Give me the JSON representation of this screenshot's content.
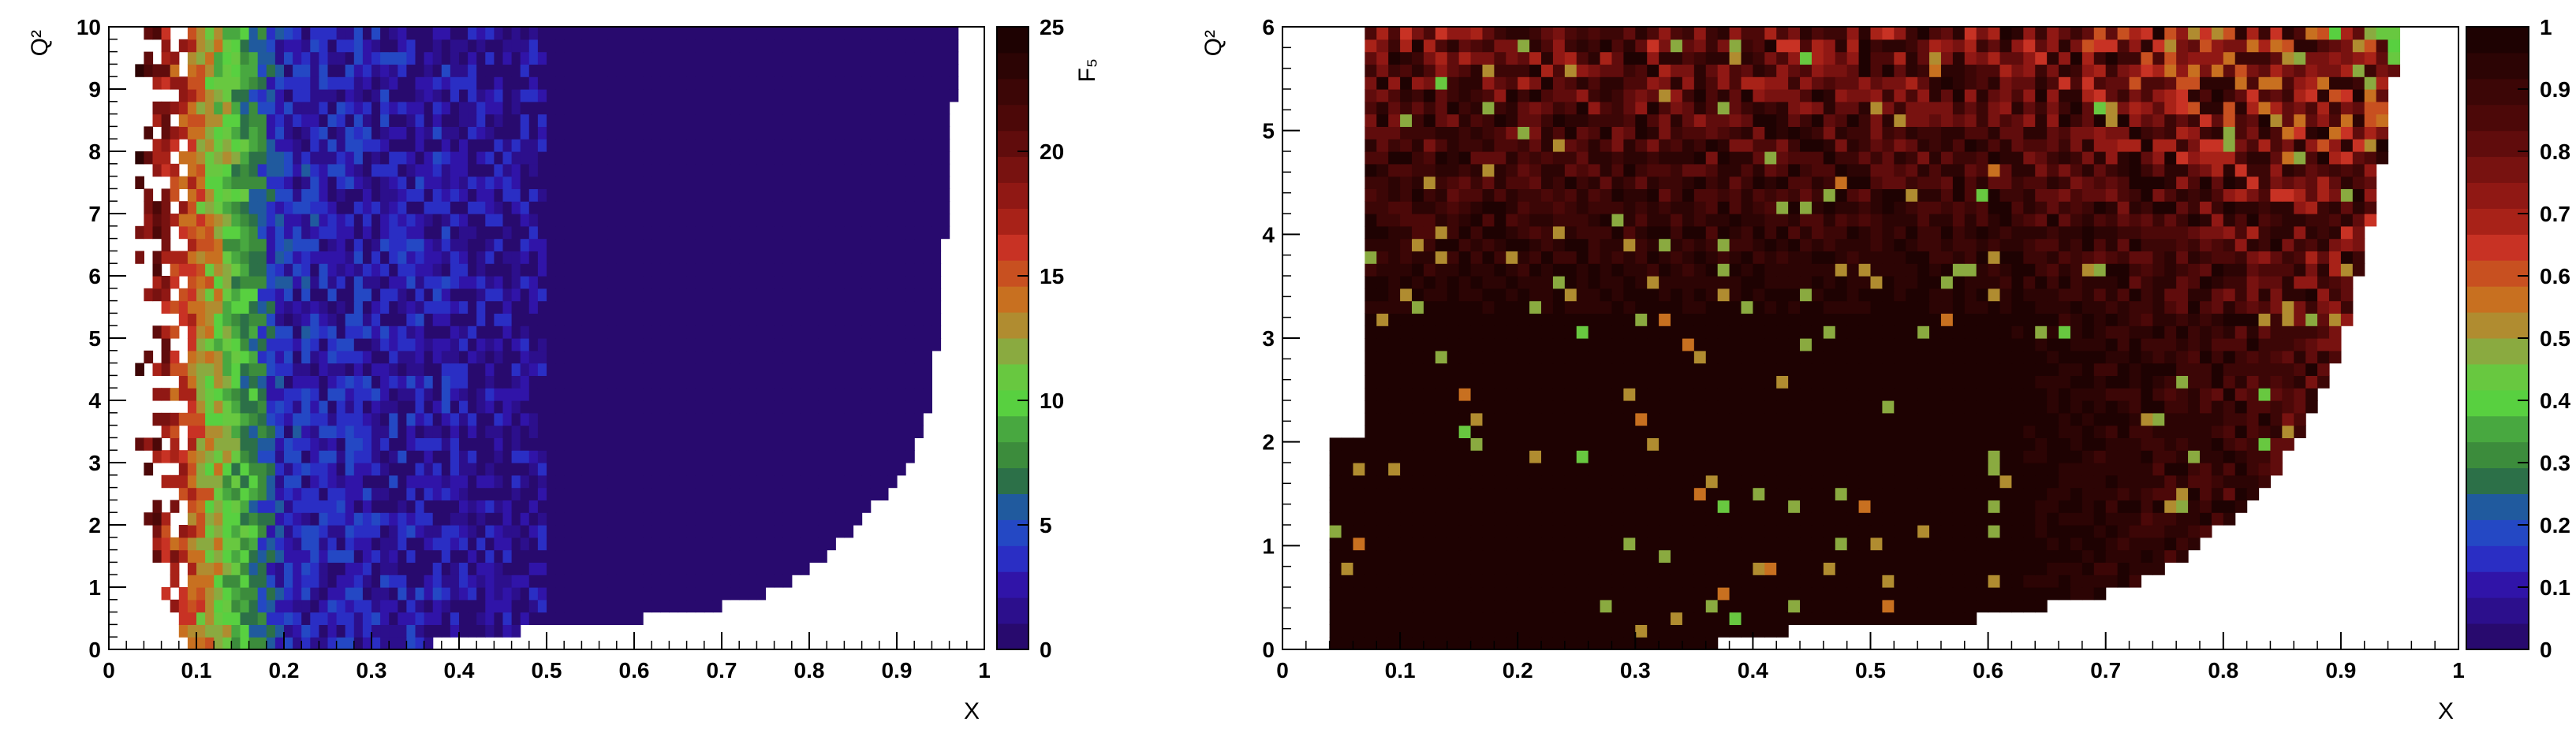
{
  "chart_data": [
    {
      "type": "heatmap",
      "title": "",
      "xlabel": "X",
      "ylabel": "Q²",
      "zlabel": "F₅",
      "xlim": [
        0,
        1
      ],
      "ylim": [
        0,
        10
      ],
      "zlim": [
        0,
        25
      ],
      "x_ticks": [
        "0",
        "0.1",
        "0.2",
        "0.3",
        "0.4",
        "0.5",
        "0.6",
        "0.7",
        "0.8",
        "0.9",
        "1"
      ],
      "y_ticks": [
        "0",
        "1",
        "2",
        "3",
        "4",
        "5",
        "6",
        "7",
        "8",
        "9",
        "10"
      ],
      "z_ticks": [
        "0",
        "5",
        "10",
        "15",
        "20",
        "25"
      ],
      "grid": false,
      "colorbar": "right",
      "bins": {
        "nx": 100,
        "ny": 50
      },
      "description_points": [
        {
          "x": 0.06,
          "y": 1.5,
          "z": 20
        },
        {
          "x": 0.1,
          "y": 4.0,
          "z": 14
        },
        {
          "x": 0.15,
          "y": 6.0,
          "z": 10
        },
        {
          "x": 0.2,
          "y": 5.0,
          "z": 4
        },
        {
          "x": 0.3,
          "y": 5.0,
          "z": 2
        },
        {
          "x": 0.4,
          "y": 5.0,
          "z": 1.5
        },
        {
          "x": 0.7,
          "y": 5.0,
          "z": 0.5
        },
        {
          "x": 0.9,
          "y": 8.0,
          "z": 0.5
        }
      ],
      "x_max_vs_q2": [
        [
          0.37,
          0.25
        ],
        [
          0.56,
          0.35
        ],
        [
          0.62,
          0.55
        ],
        [
          0.72,
          0.75
        ],
        [
          0.78,
          1.1
        ],
        [
          0.82,
          1.5
        ],
        [
          0.86,
          2.1
        ],
        [
          0.91,
          2.8
        ],
        [
          0.94,
          4.0
        ],
        [
          0.95,
          5.5
        ],
        [
          0.96,
          7.5
        ],
        [
          0.97,
          10.0
        ]
      ]
    },
    {
      "type": "heatmap",
      "title": "",
      "xlabel": "X",
      "ylabel": "Q²",
      "zlabel": "",
      "xlim": [
        0,
        1
      ],
      "ylim": [
        0,
        6
      ],
      "zlim": [
        0,
        1
      ],
      "x_ticks": [
        "0",
        "0.1",
        "0.2",
        "0.3",
        "0.4",
        "0.5",
        "0.6",
        "0.7",
        "0.8",
        "0.9",
        "1"
      ],
      "y_ticks": [
        "0",
        "1",
        "2",
        "3",
        "4",
        "5",
        "6"
      ],
      "z_ticks": [
        "0",
        "0.1",
        "0.2",
        "0.3",
        "0.4",
        "0.5",
        "0.6",
        "0.7",
        "0.8",
        "0.9",
        "1"
      ],
      "grid": false,
      "colorbar": "right",
      "bins": {
        "nx": 100,
        "ny": 50
      },
      "description_points": [
        {
          "x": 0.3,
          "y": 1.5,
          "z": 0.99
        },
        {
          "x": 0.5,
          "y": 2.5,
          "z": 0.98
        },
        {
          "x": 0.2,
          "y": 5.0,
          "z": 0.8
        },
        {
          "x": 0.6,
          "y": 5.0,
          "z": 0.8
        },
        {
          "x": 0.85,
          "y": 3.0,
          "z": 0.78
        },
        {
          "x": 0.9,
          "y": 4.5,
          "z": 0.72
        }
      ],
      "x_max_vs_q2": [
        [
          0.37,
          0.15
        ],
        [
          0.56,
          0.25
        ],
        [
          0.66,
          0.45
        ],
        [
          0.72,
          0.6
        ],
        [
          0.77,
          0.9
        ],
        [
          0.8,
          1.2
        ],
        [
          0.84,
          1.6
        ],
        [
          0.87,
          2.2
        ],
        [
          0.9,
          2.9
        ],
        [
          0.92,
          3.8
        ],
        [
          0.94,
          5.0
        ],
        [
          0.95,
          6.0
        ]
      ]
    }
  ]
}
